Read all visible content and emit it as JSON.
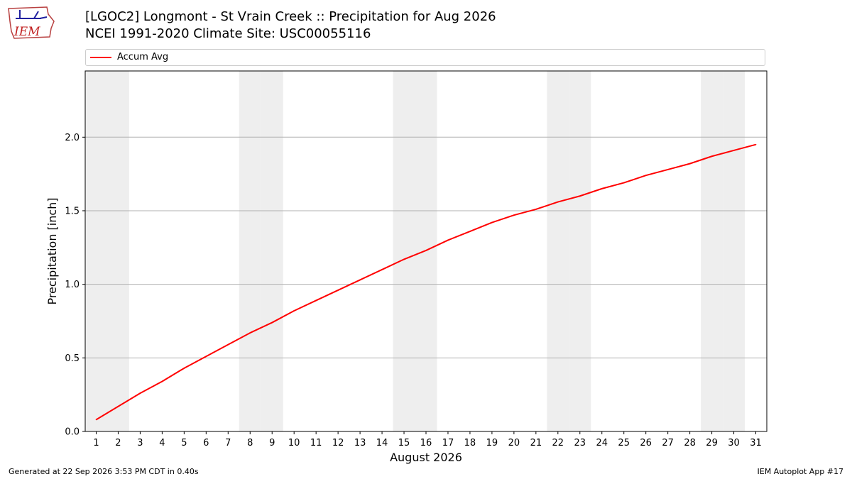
{
  "header": {
    "title_line1": "[LGOC2] Longmont - St Vrain Creek :: Precipitation for Aug 2026",
    "title_line2": "NCEI 1991-2020 Climate Site: USC00055116"
  },
  "logo": {
    "text": "IEM",
    "icon": "iem-logo-icon"
  },
  "footer": {
    "left": "Generated at 22 Sep 2026 3:53 PM CDT in 0.40s",
    "right": "IEM Autoplot App #17"
  },
  "colors": {
    "line": "#ff0000",
    "weekend_band": "#eeeeee",
    "grid": "#b0b0b0"
  },
  "chart_data": {
    "type": "line",
    "xlabel": "August 2026",
    "ylabel": "Precipitation [inch]",
    "x": [
      1,
      2,
      3,
      4,
      5,
      6,
      7,
      8,
      9,
      10,
      11,
      12,
      13,
      14,
      15,
      16,
      17,
      18,
      19,
      20,
      21,
      22,
      23,
      24,
      25,
      26,
      27,
      28,
      29,
      30,
      31
    ],
    "series": [
      {
        "name": "Accum Avg",
        "color": "#ff0000",
        "values": [
          0.08,
          0.17,
          0.26,
          0.34,
          0.43,
          0.51,
          0.59,
          0.67,
          0.74,
          0.82,
          0.89,
          0.96,
          1.03,
          1.1,
          1.17,
          1.23,
          1.3,
          1.36,
          1.42,
          1.47,
          1.51,
          1.56,
          1.6,
          1.65,
          1.69,
          1.74,
          1.78,
          1.82,
          1.87,
          1.91,
          1.95
        ]
      }
    ],
    "shaded_days": [
      1,
      2,
      8,
      9,
      15,
      16,
      22,
      23,
      29,
      30
    ],
    "xlim": [
      0.5,
      31.5
    ],
    "ylim": [
      0,
      2.45
    ],
    "yticks": [
      0.0,
      0.5,
      1.0,
      1.5,
      2.0
    ],
    "ytick_labels": [
      "0.0",
      "0.5",
      "1.0",
      "1.5",
      "2.0"
    ],
    "grid": "horizontal",
    "legend": "top"
  }
}
